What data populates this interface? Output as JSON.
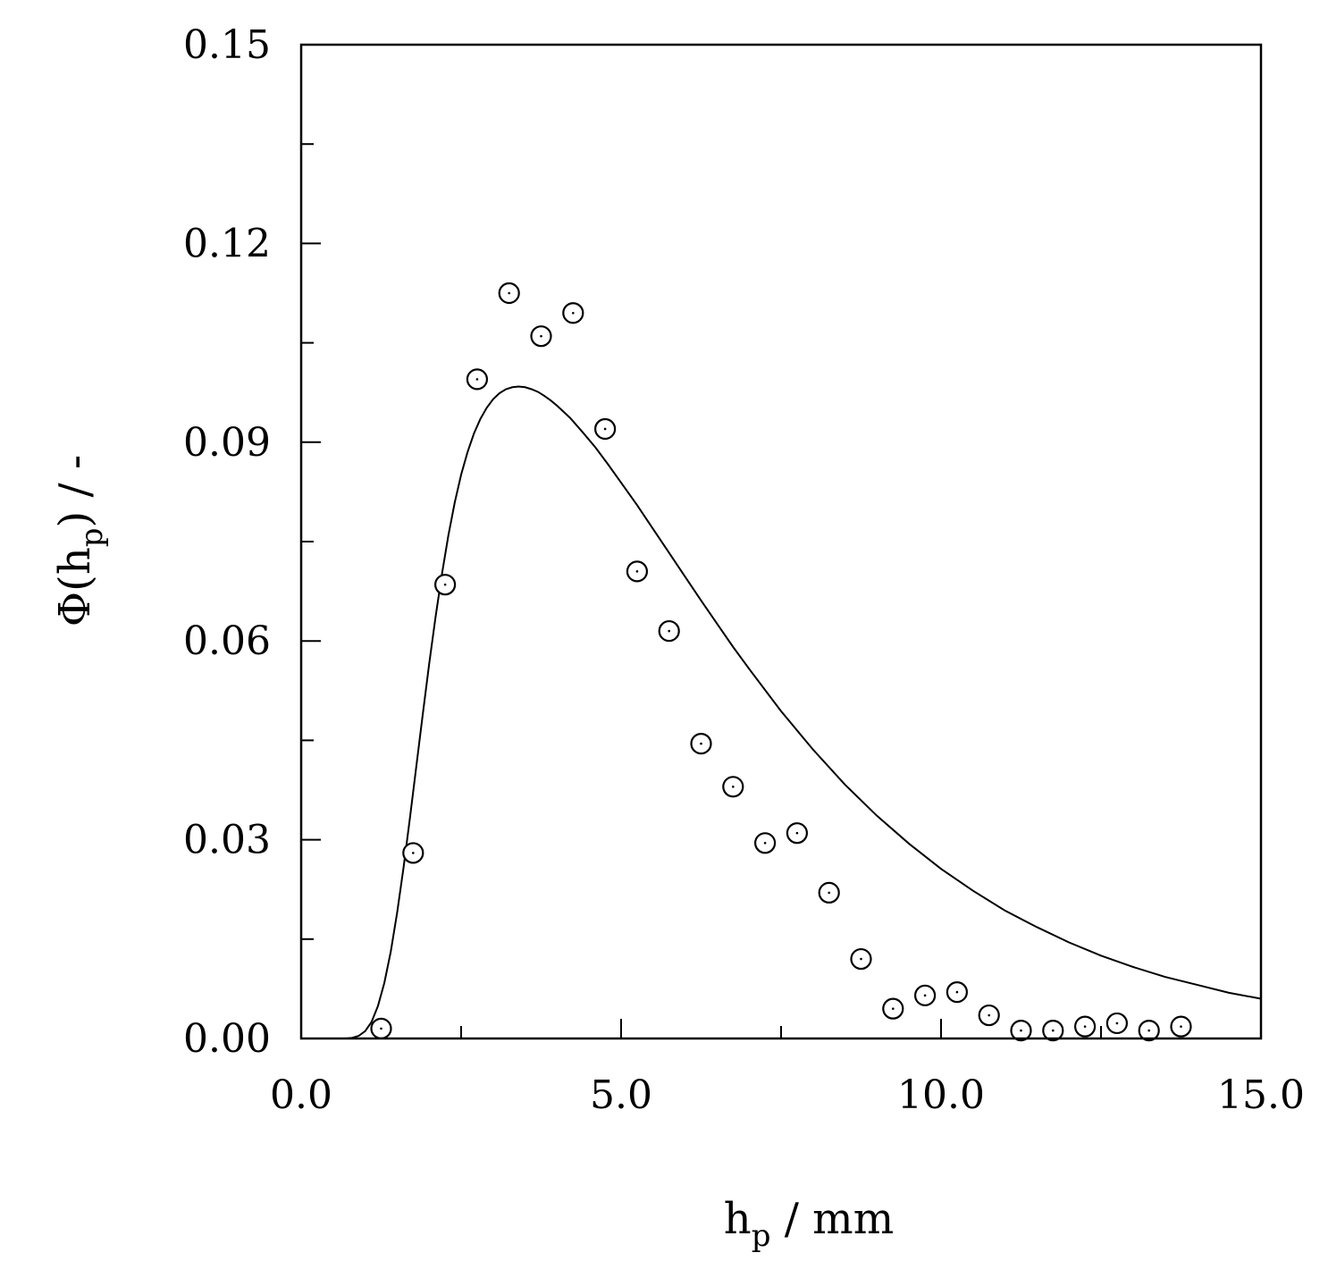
{
  "chart_data": {
    "type": "scatter",
    "xlabel": {
      "main": "h",
      "sub": "p",
      "suffix": " / mm"
    },
    "ylabel": {
      "prefix": "Φ(h",
      "sub": "p",
      "suffix": ") / -"
    },
    "xlim": [
      0,
      15
    ],
    "ylim": [
      0,
      0.15
    ],
    "x_ticks": [
      {
        "value": 0,
        "label": "0.0"
      },
      {
        "value": 5,
        "label": "5.0"
      },
      {
        "value": 10,
        "label": "10.0"
      },
      {
        "value": 15,
        "label": "15.0"
      }
    ],
    "x_minor_ticks": [
      2.5,
      7.5,
      12.5
    ],
    "y_ticks": [
      {
        "value": 0,
        "label": "0.00"
      },
      {
        "value": 0.03,
        "label": "0.03"
      },
      {
        "value": 0.06,
        "label": "0.06"
      },
      {
        "value": 0.09,
        "label": "0.09"
      },
      {
        "value": 0.12,
        "label": "0.12"
      },
      {
        "value": 0.15,
        "label": "0.15"
      }
    ],
    "y_minor_ticks": [
      0.015,
      0.045,
      0.075,
      0.105,
      0.135
    ],
    "grid": false,
    "series": [
      {
        "type": "scatter",
        "marker": "open-circle-with-dot",
        "x": [
          1.25,
          1.75,
          2.25,
          2.75,
          3.25,
          3.75,
          4.25,
          4.75,
          5.25,
          5.75,
          6.25,
          6.75,
          7.25,
          7.75,
          8.25,
          8.75,
          9.25,
          9.75,
          10.25,
          10.75,
          11.25,
          11.75,
          12.25,
          12.75,
          13.25,
          13.75
        ],
        "y": [
          0.0015,
          0.028,
          0.0685,
          0.0995,
          0.1125,
          0.106,
          0.1095,
          0.092,
          0.0705,
          0.0615,
          0.0445,
          0.038,
          0.0295,
          0.031,
          0.022,
          0.012,
          0.0045,
          0.0065,
          0.007,
          0.0035,
          0.0012,
          0.0012,
          0.0018,
          0.0023,
          0.0012,
          0.0018
        ]
      },
      {
        "type": "line",
        "x": [
          0,
          0.7,
          0.8,
          0.9,
          1.0,
          1.1,
          1.2,
          1.3,
          1.4,
          1.5,
          1.6,
          1.7,
          1.8,
          1.9,
          2.0,
          2.1,
          2.2,
          2.3,
          2.4,
          2.5,
          2.6,
          2.7,
          2.8,
          2.9,
          3.0,
          3.1,
          3.2,
          3.3,
          3.4,
          3.5,
          3.6,
          3.7,
          3.8,
          3.9,
          4.0,
          4.2,
          4.4,
          4.6,
          4.8,
          5.0,
          5.25,
          5.5,
          5.75,
          6.0,
          6.25,
          6.5,
          6.75,
          7.0,
          7.5,
          8.0,
          8.5,
          9.0,
          9.5,
          10.0,
          10.5,
          11.0,
          11.5,
          12.0,
          12.5,
          13.0,
          13.5,
          14.0,
          14.5,
          15.0
        ],
        "y": [
          0,
          0,
          0.0001,
          0.0004,
          0.0011,
          0.0025,
          0.0049,
          0.0084,
          0.0131,
          0.019,
          0.0258,
          0.0333,
          0.0411,
          0.0489,
          0.0565,
          0.0636,
          0.0701,
          0.0759,
          0.0809,
          0.0851,
          0.0885,
          0.0913,
          0.0935,
          0.0952,
          0.0965,
          0.0974,
          0.098,
          0.0983,
          0.0984,
          0.0983,
          0.098,
          0.0976,
          0.097,
          0.0963,
          0.0955,
          0.0937,
          0.0915,
          0.0892,
          0.0866,
          0.0839,
          0.0805,
          0.0769,
          0.0733,
          0.0697,
          0.0661,
          0.0626,
          0.0591,
          0.0558,
          0.0494,
          0.0436,
          0.0383,
          0.0336,
          0.0294,
          0.0256,
          0.0223,
          0.0193,
          0.0168,
          0.0145,
          0.0125,
          0.0108,
          0.0093,
          0.0081,
          0.0069,
          0.006
        ]
      }
    ]
  }
}
